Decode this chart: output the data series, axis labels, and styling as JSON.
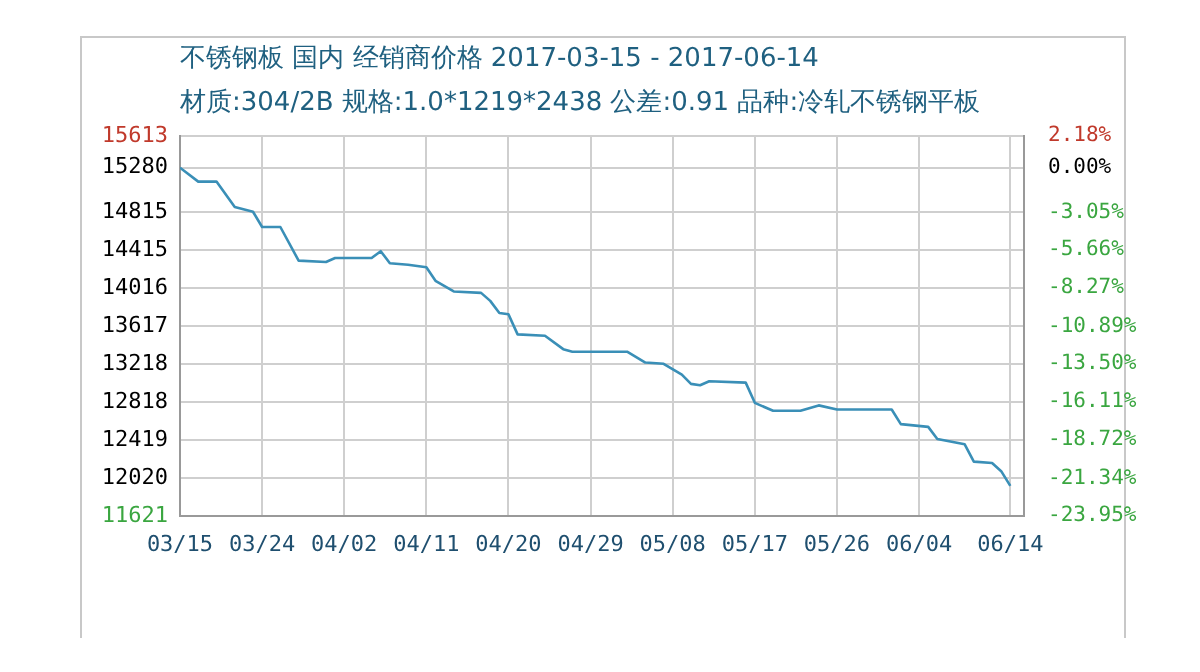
{
  "chart_data": {
    "type": "line",
    "title": "不锈钢板 国内 经销商价格 2017-03-15 - 2017-06-14",
    "subtitle": "材质:304/2B 规格:1.0*1219*2438 公差:0.91 品种:冷轧不锈钢平板",
    "x": [
      "2017-03-15",
      "2017-03-17",
      "2017-03-19",
      "2017-03-21",
      "2017-03-23",
      "2017-03-24",
      "2017-03-26",
      "2017-03-28",
      "2017-03-31",
      "2017-04-01",
      "2017-04-05",
      "2017-04-06",
      "2017-04-07",
      "2017-04-09",
      "2017-04-11",
      "2017-04-12",
      "2017-04-14",
      "2017-04-17",
      "2017-04-18",
      "2017-04-19",
      "2017-04-20",
      "2017-04-21",
      "2017-04-24",
      "2017-04-26",
      "2017-04-27",
      "2017-05-03",
      "2017-05-05",
      "2017-05-07",
      "2017-05-09",
      "2017-05-10",
      "2017-05-11",
      "2017-05-12",
      "2017-05-16",
      "2017-05-17",
      "2017-05-19",
      "2017-05-22",
      "2017-05-24",
      "2017-05-26",
      "2017-06-01",
      "2017-06-02",
      "2017-06-05",
      "2017-06-06",
      "2017-06-09",
      "2017-06-10",
      "2017-06-12",
      "2017-06-13",
      "2017-06-14"
    ],
    "series": [
      {
        "color": "#3a8fb7",
        "values": [
          15280,
          15134,
          15134,
          14867,
          14817,
          14657,
          14657,
          14304,
          14289,
          14331,
          14331,
          14403,
          14276,
          14261,
          14234,
          14092,
          13980,
          13965,
          13881,
          13754,
          13740,
          13529,
          13515,
          13374,
          13347,
          13347,
          13233,
          13220,
          13106,
          13009,
          12994,
          13036,
          13022,
          12810,
          12726,
          12726,
          12783,
          12740,
          12740,
          12586,
          12557,
          12430,
          12374,
          12192,
          12177,
          12092,
          11938
        ]
      }
    ],
    "xlim": [
      "2017-03-15",
      "2017-06-15T12:00"
    ],
    "xticks": [
      {
        "value": "2017-03-15",
        "label": "03/15"
      },
      {
        "value": "2017-03-24",
        "label": "03/24"
      },
      {
        "value": "2017-04-02",
        "label": "04/02"
      },
      {
        "value": "2017-04-11",
        "label": "04/11"
      },
      {
        "value": "2017-04-20",
        "label": "04/20"
      },
      {
        "value": "2017-04-29",
        "label": "04/29"
      },
      {
        "value": "2017-05-08",
        "label": "05/08"
      },
      {
        "value": "2017-05-17",
        "label": "05/17"
      },
      {
        "value": "2017-05-26",
        "label": "05/26"
      },
      {
        "value": "2017-06-04",
        "label": "06/04"
      },
      {
        "value": "2017-06-14",
        "label": "06/14"
      }
    ],
    "ylim": [
      11621,
      15613
    ],
    "yticks": [
      11621,
      12020,
      12419,
      12818,
      13218,
      13617,
      14016,
      14415,
      14815,
      15280,
      15613
    ],
    "y2lim": [
      -23.95,
      2.18
    ],
    "y2ticks": [
      {
        "value": -23.95,
        "label": "-23.95%"
      },
      {
        "value": -21.34,
        "label": "-21.34%"
      },
      {
        "value": -18.72,
        "label": "-18.72%"
      },
      {
        "value": -16.11,
        "label": "-16.11%"
      },
      {
        "value": -13.5,
        "label": "-13.50%"
      },
      {
        "value": -10.89,
        "label": "-10.89%"
      },
      {
        "value": -8.27,
        "label": "-8.27%"
      },
      {
        "value": -5.66,
        "label": "-5.66%"
      },
      {
        "value": -3.05,
        "label": "-3.05%"
      },
      {
        "value": 0,
        "label": "0.00%"
      },
      {
        "value": 2.18,
        "label": "2.18%"
      }
    ],
    "grid": true,
    "legend": false,
    "marker": "none",
    "line_style": "solid"
  }
}
